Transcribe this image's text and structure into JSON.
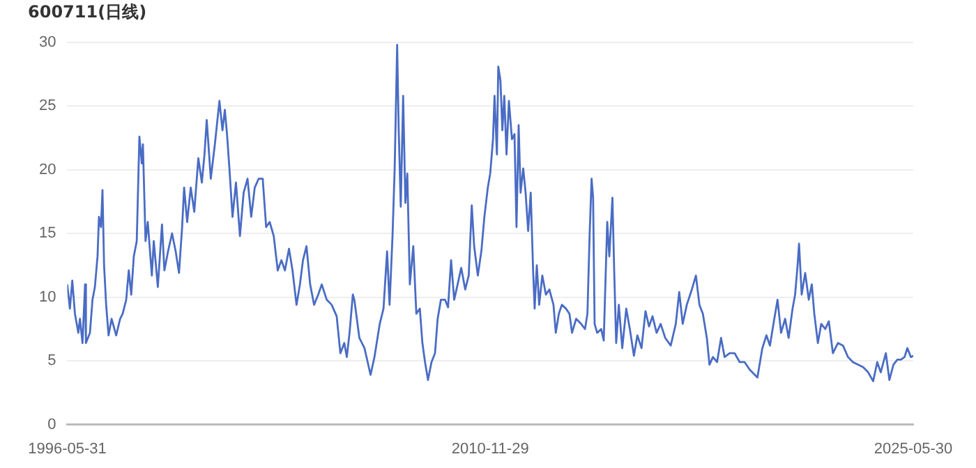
{
  "chart_data": {
    "type": "line",
    "title": "600711(日线)",
    "x": [
      "1996-05-31",
      "1996-07-03",
      "1996-08-02",
      "1996-09-04",
      "1996-10-17",
      "1996-11-06",
      "1996-12-08",
      "1997-01-09",
      "1997-01-20",
      "1997-03-11",
      "1997-04-12",
      "1997-05-12",
      "1997-06-14",
      "1997-07-02",
      "1997-07-27",
      "1997-08-15",
      "1997-09-04",
      "1997-09-30",
      "1997-10-30",
      "1997-12-07",
      "1998-02-03",
      "1998-03-24",
      "1998-04-25",
      "1998-06-08",
      "1998-07-10",
      "1998-08-10",
      "1998-09-11",
      "1998-10-18",
      "1998-11-20",
      "1998-12-20",
      "1999-01-03",
      "1999-02-05",
      "1999-03-05",
      "1999-04-25",
      "1999-05-19",
      "1999-07-09",
      "1999-08-30",
      "1999-09-29",
      "1999-11-14",
      "2000-01-03",
      "2000-02-17",
      "2000-03-30",
      "2000-05-08",
      "2000-06-02",
      "2000-07-10",
      "2000-08-24",
      "2000-10-07",
      "2000-11-27",
      "2001-01-10",
      "2001-02-12",
      "2001-03-12",
      "2001-05-02",
      "2001-06-22",
      "2001-08-18",
      "2001-09-25",
      "2001-10-25",
      "2001-11-21",
      "2001-12-21",
      "2002-01-29",
      "2002-03-13",
      "2002-05-02",
      "2002-06-17",
      "2002-08-05",
      "2002-09-20",
      "2002-11-03",
      "2002-12-23",
      "2003-02-11",
      "2003-03-26",
      "2003-05-09",
      "2003-06-29",
      "2003-08-18",
      "2003-10-03",
      "2003-11-16",
      "2004-01-06",
      "2004-02-19",
      "2004-04-09",
      "2004-05-22",
      "2004-06-29",
      "2004-08-12",
      "2004-09-27",
      "2004-11-15",
      "2005-01-06",
      "2005-02-19",
      "2005-04-22",
      "2005-06-23",
      "2005-08-25",
      "2005-10-10",
      "2005-11-28",
      "2005-12-30",
      "2006-02-02",
      "2006-03-15",
      "2006-04-03",
      "2006-06-05",
      "2006-08-08",
      "2006-10-23",
      "2006-12-11",
      "2007-02-15",
      "2007-04-03",
      "2007-05-18",
      "2007-06-18",
      "2007-07-25",
      "2007-08-21",
      "2007-09-21",
      "2007-10-09",
      "2007-11-05",
      "2007-12-05",
      "2008-01-02",
      "2008-01-26",
      "2008-02-27",
      "2008-04-10",
      "2008-05-18",
      "2008-07-01",
      "2008-08-02",
      "2008-09-04",
      "2008-10-11",
      "2008-11-24",
      "2009-01-07",
      "2009-02-09",
      "2009-03-22",
      "2009-05-12",
      "2009-06-19",
      "2009-07-27",
      "2009-09-04",
      "2009-10-17",
      "2009-12-01",
      "2010-01-20",
      "2010-03-05",
      "2010-04-12",
      "2010-05-12",
      "2010-06-27",
      "2010-08-10",
      "2010-09-17",
      "2010-10-30",
      "2010-11-29",
      "2011-01-03",
      "2011-01-22",
      "2011-02-21",
      "2011-03-10",
      "2011-04-06",
      "2011-04-30",
      "2011-05-24",
      "2011-06-21",
      "2011-07-21",
      "2011-08-28",
      "2011-09-29",
      "2011-10-24",
      "2011-11-20",
      "2011-12-14",
      "2012-01-16",
      "2012-02-15",
      "2012-03-18",
      "2012-04-19",
      "2012-05-19",
      "2012-06-07",
      "2012-07-04",
      "2012-08-03",
      "2012-09-11",
      "2012-10-26",
      "2012-12-08",
      "2013-01-29",
      "2013-02-27",
      "2013-04-06",
      "2013-05-14",
      "2013-07-04",
      "2013-08-17",
      "2013-09-18",
      "2013-11-09",
      "2014-01-10",
      "2014-02-28",
      "2014-03-30",
      "2014-04-26",
      "2014-05-21",
      "2014-06-09",
      "2014-06-28",
      "2014-07-30",
      "2014-09-18",
      "2014-10-20",
      "2014-12-03",
      "2014-12-29",
      "2015-02-06",
      "2015-02-28",
      "2015-03-25",
      "2015-04-27",
      "2015-06-09",
      "2015-07-29",
      "2015-09-12",
      "2015-11-02",
      "2015-12-15",
      "2016-02-05",
      "2016-03-26",
      "2016-05-09",
      "2016-06-22",
      "2016-08-12",
      "2016-10-02",
      "2016-11-28",
      "2017-02-05",
      "2017-04-09",
      "2017-05-22",
      "2017-07-05",
      "2017-08-25",
      "2017-10-27",
      "2017-12-17",
      "2018-01-30",
      "2018-03-14",
      "2018-05-03",
      "2018-06-05",
      "2018-07-18",
      "2018-09-08",
      "2018-10-28",
      "2018-12-11",
      "2019-02-13",
      "2019-04-16",
      "2019-06-18",
      "2019-08-19",
      "2019-10-23",
      "2020-01-26",
      "2020-03-28",
      "2020-05-18",
      "2020-07-01",
      "2020-08-14",
      "2020-10-04",
      "2020-11-17",
      "2021-01-07",
      "2021-02-20",
      "2021-04-10",
      "2021-05-12",
      "2021-06-12",
      "2021-06-30",
      "2021-08-02",
      "2021-09-15",
      "2021-10-30",
      "2021-12-07",
      "2022-01-07",
      "2022-02-21",
      "2022-04-04",
      "2022-05-25",
      "2022-07-08",
      "2022-08-28",
      "2022-10-30",
      "2023-01-01",
      "2023-03-05",
      "2023-05-06",
      "2023-07-08",
      "2023-09-11",
      "2023-11-13",
      "2024-01-14",
      "2024-03-05",
      "2024-04-18",
      "2024-06-21",
      "2024-08-04",
      "2024-09-24",
      "2024-11-12",
      "2024-12-27",
      "2025-02-10",
      "2025-03-17",
      "2025-04-30",
      "2025-05-30"
    ],
    "series": [
      {
        "color": "#4a6cc4",
        "values": [
          11.0,
          9.1,
          11.3,
          8.7,
          7.2,
          8.3,
          6.4,
          11.0,
          6.4,
          7.2,
          9.8,
          10.8,
          13.2,
          16.3,
          15.5,
          18.4,
          12.5,
          9.4,
          7.0,
          8.3,
          7.0,
          8.3,
          8.7,
          9.8,
          12.1,
          10.2,
          13.2,
          14.4,
          22.6,
          20.5,
          22.0,
          14.4,
          15.9,
          11.7,
          14.4,
          10.8,
          15.7,
          12.1,
          13.6,
          15.0,
          13.6,
          11.9,
          15.5,
          18.6,
          15.9,
          18.6,
          16.7,
          20.9,
          19.0,
          21.2,
          23.9,
          19.3,
          22.0,
          25.4,
          23.1,
          24.7,
          22.8,
          20.1,
          16.3,
          19.0,
          14.8,
          18.2,
          19.3,
          16.3,
          18.6,
          19.3,
          19.3,
          15.5,
          15.9,
          14.8,
          12.1,
          12.9,
          12.1,
          13.8,
          12.1,
          9.4,
          11.0,
          12.9,
          14.0,
          11.0,
          9.4,
          10.2,
          11.0,
          9.8,
          9.4,
          8.5,
          5.6,
          6.4,
          5.3,
          7.2,
          10.2,
          9.8,
          6.8,
          6.0,
          3.9,
          5.3,
          7.9,
          9.1,
          13.6,
          9.4,
          14.8,
          20.1,
          29.8,
          23.5,
          17.1,
          25.8,
          17.4,
          19.7,
          11.0,
          14.0,
          8.7,
          9.1,
          6.4,
          4.9,
          3.5,
          4.9,
          5.6,
          8.3,
          9.8,
          9.8,
          9.2,
          12.9,
          9.8,
          11.0,
          12.3,
          10.6,
          11.7,
          17.2,
          14.0,
          11.7,
          13.6,
          16.3,
          18.6,
          19.7,
          22.4,
          25.8,
          21.2,
          28.1,
          27.0,
          23.1,
          25.8,
          21.2,
          25.4,
          22.4,
          22.8,
          15.5,
          23.5,
          18.2,
          20.1,
          18.2,
          15.2,
          18.2,
          12.1,
          9.1,
          12.5,
          9.4,
          11.7,
          10.2,
          10.6,
          9.4,
          7.2,
          8.7,
          9.4,
          9.1,
          8.7,
          7.2,
          8.3,
          7.9,
          7.5,
          8.7,
          14.8,
          19.3,
          17.8,
          7.9,
          7.2,
          7.5,
          6.6,
          15.9,
          13.2,
          17.8,
          12.1,
          6.4,
          9.4,
          6.0,
          9.1,
          7.5,
          5.4,
          7.0,
          6.0,
          8.9,
          7.7,
          8.5,
          7.2,
          7.9,
          6.8,
          6.2,
          7.9,
          10.4,
          7.9,
          9.4,
          10.6,
          11.7,
          9.4,
          8.7,
          6.8,
          4.7,
          5.3,
          4.9,
          6.8,
          5.3,
          5.6,
          5.6,
          4.9,
          4.9,
          4.3,
          3.7,
          6.0,
          7.0,
          6.2,
          7.9,
          9.8,
          7.2,
          8.3,
          6.8,
          9.1,
          10.2,
          12.5,
          14.2,
          10.2,
          11.9,
          9.8,
          11.0,
          8.7,
          6.4,
          7.9,
          7.5,
          8.1,
          5.6,
          6.4,
          6.2,
          5.3,
          4.9,
          4.7,
          4.5,
          4.1,
          3.4,
          4.9,
          4.1,
          5.6,
          3.5,
          4.7,
          5.1,
          5.1,
          5.3,
          6.0,
          5.3,
          5.4
        ]
      }
    ],
    "xlim": [
      "1996-05-31",
      "2025-05-30"
    ],
    "xticks": [
      "1996-05-31",
      "2010-11-29",
      "2025-05-30"
    ],
    "ylim": [
      0,
      30
    ],
    "yticks": [
      0,
      5,
      10,
      15,
      20,
      25,
      30
    ],
    "grid": "y",
    "marker": "none",
    "line_style": "solid"
  }
}
